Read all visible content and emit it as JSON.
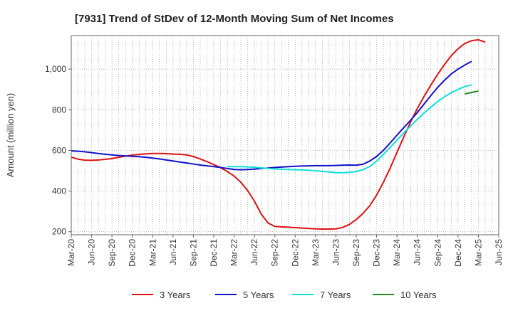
{
  "chart_data": {
    "type": "line",
    "title": "[7931]  Trend of StDev of 12-Month Moving Sum of Net Incomes",
    "ylabel": "Amount (million yen)",
    "xlabel": "",
    "ylim": [
      185,
      1165
    ],
    "yticks": [
      200,
      400,
      600,
      800,
      1000
    ],
    "ytick_labels": [
      "200",
      "400",
      "600",
      "800",
      "1,000"
    ],
    "xticks": [
      "Mar-20",
      "Jun-20",
      "Sep-20",
      "Dec-20",
      "Mar-21",
      "Jun-21",
      "Sep-21",
      "Dec-21",
      "Mar-22",
      "Jun-22",
      "Sep-22",
      "Dec-22",
      "Mar-23",
      "Jun-23",
      "Sep-23",
      "Dec-23",
      "Mar-24",
      "Jun-24",
      "Sep-24",
      "Dec-24",
      "Mar-25",
      "Jun-25"
    ],
    "grid": true,
    "legend_position": "bottom",
    "series": [
      {
        "name": "3 Years",
        "color": "#dd1111",
        "start": "Mar-20",
        "values": [
          567,
          557,
          552,
          551,
          553,
          556,
          560,
          566,
          572,
          577,
          580,
          583,
          585,
          585,
          584,
          582,
          581,
          578,
          570,
          558,
          545,
          530,
          515,
          496,
          474,
          443,
          402,
          350,
          287,
          243,
          226,
          224,
          222,
          220,
          218,
          216,
          214,
          213,
          213,
          214,
          221,
          236,
          260,
          290,
          328,
          380,
          443,
          513,
          590,
          666,
          739,
          806,
          866,
          922,
          974,
          1022,
          1066,
          1100,
          1126,
          1140,
          1144,
          1133
        ]
      },
      {
        "name": "5 Years",
        "color": "#1111cc",
        "start": "Mar-20",
        "values": [
          598,
          596,
          593,
          589,
          585,
          581,
          578,
          575,
          573,
          571,
          569,
          566,
          562,
          558,
          553,
          548,
          543,
          538,
          533,
          528,
          524,
          520,
          516,
          511,
          506,
          505,
          506,
          508,
          511,
          513,
          516,
          518,
          520,
          522,
          523,
          524,
          525,
          525,
          525,
          526,
          527,
          528,
          527,
          532,
          548,
          570,
          600,
          637,
          675,
          712,
          748,
          786,
          828,
          870,
          910,
          945,
          976,
          1000,
          1020,
          1038
        ]
      },
      {
        "name": "7 Years",
        "color": "#11dddd",
        "start": "Feb-22",
        "values": [
          520,
          520,
          520,
          519,
          517,
          514,
          511,
          509,
          507,
          506,
          505,
          504,
          502,
          500,
          497,
          494,
          491,
          490,
          492,
          496,
          505,
          521,
          547,
          580,
          615,
          650,
          686,
          720,
          753,
          784,
          813,
          840,
          864,
          884,
          900,
          914,
          922
        ]
      },
      {
        "name": "10 Years",
        "color": "#228822",
        "start": "Jan-25",
        "values": [
          878,
          885,
          892
        ]
      }
    ]
  }
}
